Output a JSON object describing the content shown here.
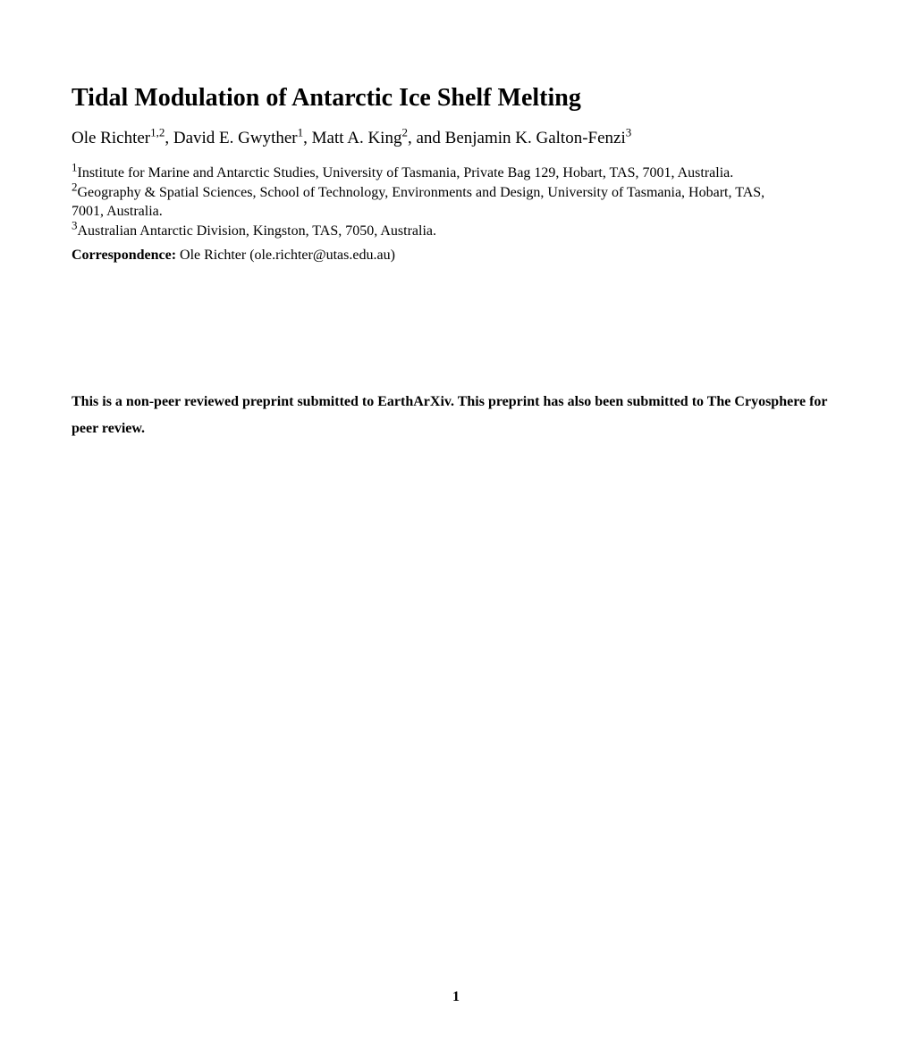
{
  "title": "Tidal Modulation of Antarctic Ice Shelf Melting",
  "authors": {
    "a1_name": "Ole Richter",
    "a1_sup": "1,2",
    "a2_name": "David E. Gwyther",
    "a2_sup": "1",
    "a3_name": "Matt A. King",
    "a3_sup": "2",
    "a4_name": "Benjamin K. Galton-Fenzi",
    "a4_sup": "3"
  },
  "affiliations": {
    "aff1_sup": "1",
    "aff1_text": "Institute for Marine and Antarctic Studies, University of Tasmania, Private Bag 129, Hobart, TAS, 7001, Australia.",
    "aff2_sup": "2",
    "aff2_text_line1": "Geography & Spatial Sciences, School of Technology, Environments and Design, University of Tasmania, Hobart, TAS,",
    "aff2_text_line2": "7001, Australia.",
    "aff3_sup": "3",
    "aff3_text": "Australian Antarctic Division, Kingston, TAS, 7050, Australia."
  },
  "correspondence": {
    "label": "Correspondence:",
    "text": " Ole Richter (ole.richter@utas.edu.au)"
  },
  "preprint_notice": "This is a non-peer reviewed preprint submitted to EarthArXiv. This preprint has also been submitted to The Cryosphere for peer review.",
  "page_number": "1",
  "separators": {
    "comma_space": ", ",
    "and": ", and "
  }
}
